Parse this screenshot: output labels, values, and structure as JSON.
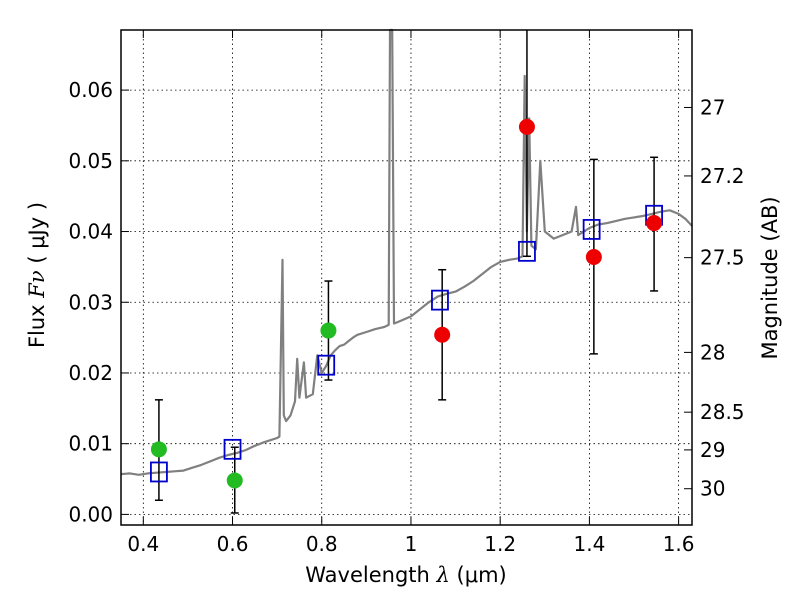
{
  "chart_data": {
    "type": "scatter",
    "title": "",
    "xlabel": {
      "prefix": "Wavelength",
      "symbol": "λ",
      "unit": "(μm)"
    },
    "ylabel": {
      "prefix": "Flux",
      "symbol": "Fν",
      "unit": "( μJy )"
    },
    "y2label": "Magnitude (AB)",
    "xlim": [
      0.35,
      1.63
    ],
    "ylim": [
      -0.0015,
      0.0685
    ],
    "grid": true,
    "x_ticks": [
      {
        "value": 0.4,
        "label": "0.4"
      },
      {
        "value": 0.6,
        "label": "0.6"
      },
      {
        "value": 0.8,
        "label": "0.8"
      },
      {
        "value": 1.0,
        "label": "1"
      },
      {
        "value": 1.2,
        "label": "1.2"
      },
      {
        "value": 1.4,
        "label": "1.4"
      },
      {
        "value": 1.6,
        "label": "1.6"
      }
    ],
    "y_ticks": [
      {
        "value": 0.0,
        "label": "0.00"
      },
      {
        "value": 0.01,
        "label": "0.01"
      },
      {
        "value": 0.02,
        "label": "0.02"
      },
      {
        "value": 0.03,
        "label": "0.03"
      },
      {
        "value": 0.04,
        "label": "0.04"
      },
      {
        "value": 0.05,
        "label": "0.05"
      },
      {
        "value": 0.06,
        "label": "0.06"
      }
    ],
    "mag_ticks": [
      {
        "value": 27,
        "label": "27"
      },
      {
        "value": 27.2,
        "label": "27.2"
      },
      {
        "value": 27.5,
        "label": "27.5"
      },
      {
        "value": 28,
        "label": "28"
      },
      {
        "value": 28.5,
        "label": "28.5"
      },
      {
        "value": 29,
        "label": "29"
      },
      {
        "value": 30,
        "label": "30"
      }
    ],
    "spectrum": {
      "color": "#808080",
      "points": [
        [
          0.35,
          0.0057
        ],
        [
          0.37,
          0.0058
        ],
        [
          0.39,
          0.0056
        ],
        [
          0.41,
          0.0058
        ],
        [
          0.43,
          0.0059
        ],
        [
          0.45,
          0.006
        ],
        [
          0.47,
          0.0061
        ],
        [
          0.49,
          0.0062
        ],
        [
          0.51,
          0.0066
        ],
        [
          0.53,
          0.007
        ],
        [
          0.55,
          0.0075
        ],
        [
          0.57,
          0.008
        ],
        [
          0.59,
          0.0084
        ],
        [
          0.61,
          0.0087
        ],
        [
          0.63,
          0.0091
        ],
        [
          0.65,
          0.0097
        ],
        [
          0.67,
          0.0102
        ],
        [
          0.69,
          0.0106
        ],
        [
          0.7,
          0.0108
        ],
        [
          0.705,
          0.011
        ],
        [
          0.712,
          0.036
        ],
        [
          0.715,
          0.014
        ],
        [
          0.72,
          0.0132
        ],
        [
          0.73,
          0.014
        ],
        [
          0.74,
          0.016
        ],
        [
          0.745,
          0.022
        ],
        [
          0.75,
          0.0165
        ],
        [
          0.76,
          0.0215
        ],
        [
          0.765,
          0.0165
        ],
        [
          0.78,
          0.017
        ],
        [
          0.79,
          0.0225
        ],
        [
          0.8,
          0.02
        ],
        [
          0.81,
          0.021
        ],
        [
          0.82,
          0.0225
        ],
        [
          0.83,
          0.0232
        ],
        [
          0.84,
          0.0238
        ],
        [
          0.85,
          0.024
        ],
        [
          0.86,
          0.0245
        ],
        [
          0.87,
          0.025
        ],
        [
          0.88,
          0.0254
        ],
        [
          0.9,
          0.0258
        ],
        [
          0.92,
          0.0262
        ],
        [
          0.94,
          0.0265
        ],
        [
          0.95,
          0.0268
        ],
        [
          0.953,
          0.07
        ],
        [
          0.958,
          0.07
        ],
        [
          0.962,
          0.027
        ],
        [
          0.97,
          0.0272
        ],
        [
          1.0,
          0.028
        ],
        [
          1.02,
          0.029
        ],
        [
          1.04,
          0.03
        ],
        [
          1.06,
          0.0308
        ],
        [
          1.08,
          0.0312
        ],
        [
          1.1,
          0.0315
        ],
        [
          1.12,
          0.0322
        ],
        [
          1.14,
          0.033
        ],
        [
          1.16,
          0.034
        ],
        [
          1.18,
          0.035
        ],
        [
          1.2,
          0.0357
        ],
        [
          1.22,
          0.036
        ],
        [
          1.24,
          0.0362
        ],
        [
          1.25,
          0.0365
        ],
        [
          1.255,
          0.062
        ],
        [
          1.26,
          0.04
        ],
        [
          1.265,
          0.056
        ],
        [
          1.27,
          0.038
        ],
        [
          1.28,
          0.0375
        ],
        [
          1.29,
          0.05
        ],
        [
          1.3,
          0.04
        ],
        [
          1.32,
          0.039
        ],
        [
          1.34,
          0.0395
        ],
        [
          1.36,
          0.04
        ],
        [
          1.37,
          0.0435
        ],
        [
          1.375,
          0.0395
        ],
        [
          1.4,
          0.0405
        ],
        [
          1.42,
          0.041
        ],
        [
          1.44,
          0.0412
        ],
        [
          1.46,
          0.0415
        ],
        [
          1.48,
          0.0418
        ],
        [
          1.5,
          0.042
        ],
        [
          1.52,
          0.0422
        ],
        [
          1.54,
          0.0425
        ],
        [
          1.56,
          0.0428
        ],
        [
          1.58,
          0.043
        ],
        [
          1.6,
          0.0425
        ],
        [
          1.615,
          0.0418
        ],
        [
          1.63,
          0.0408
        ]
      ]
    },
    "model_points": {
      "color": "#0000cc",
      "points": [
        [
          0.435,
          0.006
        ],
        [
          0.6,
          0.0092
        ],
        [
          0.81,
          0.0211
        ],
        [
          1.065,
          0.0303
        ],
        [
          1.26,
          0.0372
        ],
        [
          1.405,
          0.0403
        ],
        [
          1.545,
          0.0423
        ]
      ]
    },
    "upper_points": {
      "color": "#22bb22",
      "points": [
        {
          "x": 0.435,
          "y": 0.0092,
          "lo": 0.002,
          "hi": 0.0162
        },
        {
          "x": 0.605,
          "y": 0.0048,
          "lo": 0.0002,
          "hi": 0.0095
        },
        {
          "x": 0.815,
          "y": 0.026,
          "lo": 0.019,
          "hi": 0.033
        }
      ]
    },
    "detected_points": {
      "color": "#ee0000",
      "points": [
        {
          "x": 1.07,
          "y": 0.0254,
          "lo": 0.0162,
          "hi": 0.0346
        },
        {
          "x": 1.26,
          "y": 0.0548,
          "lo": 0.0365,
          "hi": 0.07
        },
        {
          "x": 1.41,
          "y": 0.0364,
          "lo": 0.0227,
          "hi": 0.0502
        },
        {
          "x": 1.545,
          "y": 0.0412,
          "lo": 0.0316,
          "hi": 0.0505
        }
      ]
    }
  }
}
